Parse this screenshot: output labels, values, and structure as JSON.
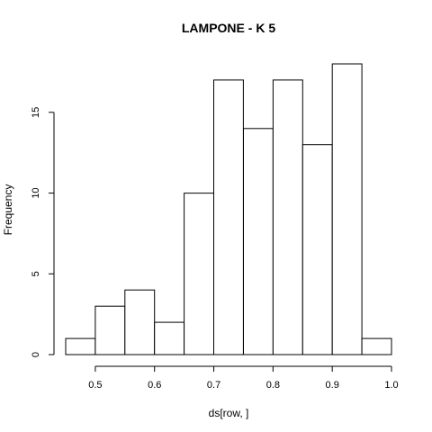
{
  "chart_data": {
    "type": "bar",
    "title": "LAMPONE - K 5",
    "xlabel": "ds[row, ]",
    "ylabel": "Frequency",
    "bins": [
      {
        "from": 0.45,
        "to": 0.5,
        "count": 1
      },
      {
        "from": 0.5,
        "to": 0.55,
        "count": 3
      },
      {
        "from": 0.55,
        "to": 0.6,
        "count": 4
      },
      {
        "from": 0.6,
        "to": 0.65,
        "count": 2
      },
      {
        "from": 0.65,
        "to": 0.7,
        "count": 10
      },
      {
        "from": 0.7,
        "to": 0.75,
        "count": 17
      },
      {
        "from": 0.75,
        "to": 0.8,
        "count": 14
      },
      {
        "from": 0.8,
        "to": 0.85,
        "count": 17
      },
      {
        "from": 0.85,
        "to": 0.9,
        "count": 13
      },
      {
        "from": 0.9,
        "to": 0.95,
        "count": 18
      },
      {
        "from": 0.95,
        "to": 1.0,
        "count": 1
      }
    ],
    "xlim": [
      0.45,
      1.0
    ],
    "ylim": [
      0,
      18
    ],
    "x_ticks": [
      0.5,
      0.6,
      0.7,
      0.8,
      0.9,
      1.0
    ],
    "x_tick_labels": [
      "0.5",
      "0.6",
      "0.7",
      "0.8",
      "0.9",
      "1.0"
    ],
    "y_ticks": [
      0,
      5,
      10,
      15
    ],
    "y_tick_labels": [
      "0",
      "5",
      "10",
      "15"
    ],
    "grid": false
  }
}
